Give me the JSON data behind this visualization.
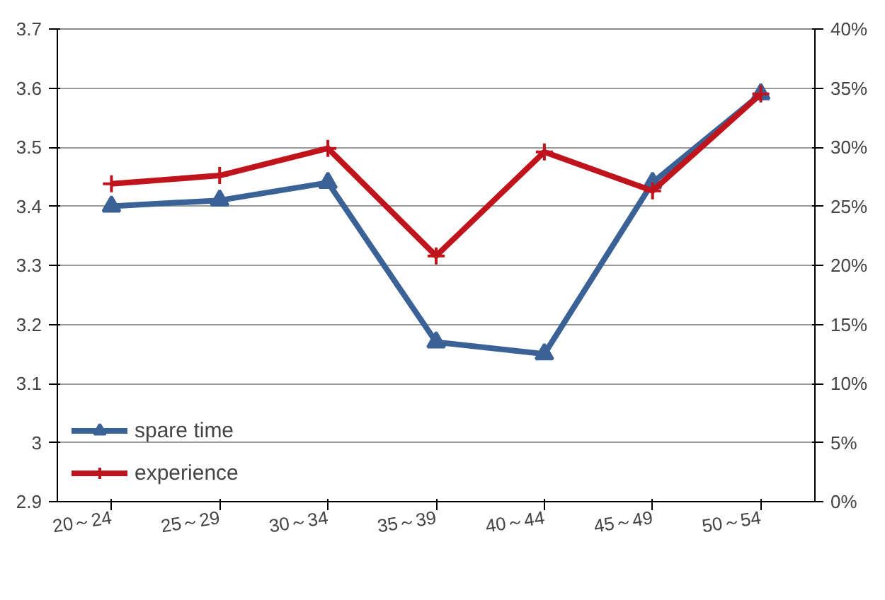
{
  "chart_data": {
    "type": "line",
    "categories": [
      "20～24",
      "25～29",
      "30～34",
      "35～39",
      "40～44",
      "45～49",
      "50～54"
    ],
    "series": [
      {
        "name": "spare time",
        "color": "#3a6296",
        "values": [
          3.4,
          3.41,
          3.44,
          3.17,
          3.15,
          3.44,
          3.59
        ],
        "marker": "triangle"
      },
      {
        "name": "experience",
        "color": "#c0141c",
        "values": [
          26.9,
          27.6,
          29.9,
          20.8,
          29.6,
          26.3,
          34.5
        ],
        "marker": "cross",
        "axis": "y2"
      }
    ],
    "ylim": [
      2.9,
      3.7
    ],
    "yticks": [
      2.9,
      3,
      3.1,
      3.2,
      3.3,
      3.4,
      3.5,
      3.6,
      3.7
    ],
    "y2lim": [
      0,
      40
    ],
    "y2ticks": [
      {
        "value": 0,
        "label": "0%"
      },
      {
        "value": 5,
        "label": "5%"
      },
      {
        "value": 10,
        "label": "10%"
      },
      {
        "value": 15,
        "label": "15%"
      },
      {
        "value": 20,
        "label": "20%"
      },
      {
        "value": 25,
        "label": "25%"
      },
      {
        "value": 30,
        "label": "30%"
      },
      {
        "value": 35,
        "label": "35%"
      },
      {
        "value": 40,
        "label": "40%"
      }
    ],
    "grid": "y",
    "legend": "bottom left"
  }
}
